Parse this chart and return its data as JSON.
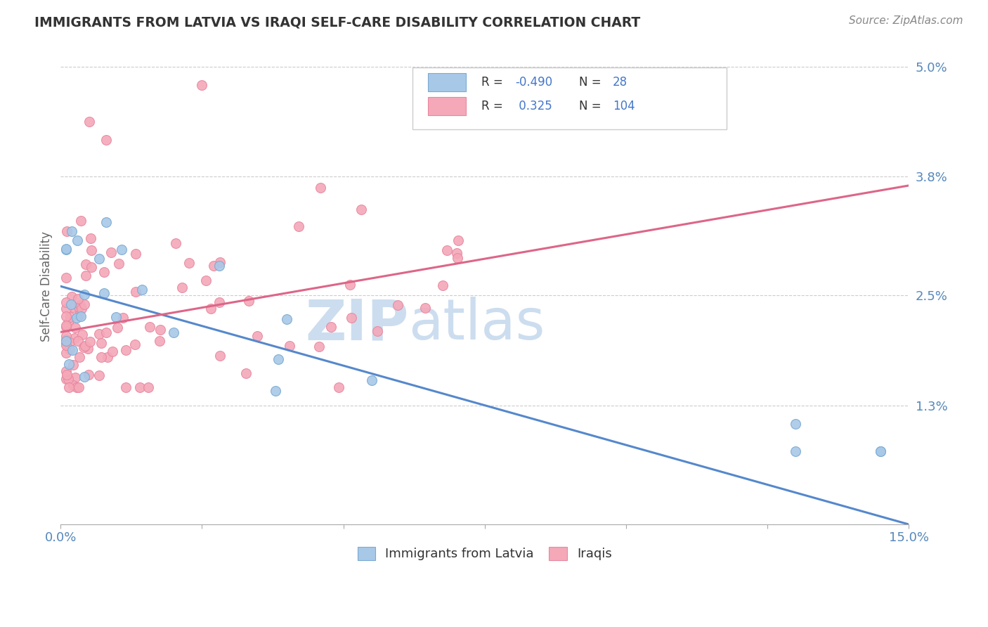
{
  "title": "IMMIGRANTS FROM LATVIA VS IRAQI SELF-CARE DISABILITY CORRELATION CHART",
  "source": "Source: ZipAtlas.com",
  "ylabel": "Self-Care Disability",
  "xlim": [
    0.0,
    0.15
  ],
  "ylim": [
    0.0,
    0.052
  ],
  "yticks": [
    0.0,
    0.013,
    0.025,
    0.038,
    0.05
  ],
  "yticklabels": [
    "",
    "1.3%",
    "2.5%",
    "3.8%",
    "5.0%"
  ],
  "xtick_positions": [
    0.0,
    0.025,
    0.05,
    0.075,
    0.1,
    0.125,
    0.15
  ],
  "blue_R": -0.49,
  "blue_N": 28,
  "pink_R": 0.325,
  "pink_N": 104,
  "blue_color": "#a8c8e8",
  "pink_color": "#f4a8b8",
  "blue_edge_color": "#7aaad0",
  "pink_edge_color": "#e888a0",
  "blue_line_color": "#5588cc",
  "pink_line_color": "#dd6688",
  "text_blue_color": "#4477cc",
  "label_color": "#5588bb",
  "title_color": "#333333",
  "source_color": "#888888",
  "watermark_color": "#ccddef",
  "background_color": "#ffffff",
  "grid_color": "#cccccc",
  "legend_blue_label": "Immigrants from Latvia",
  "legend_pink_label": "Iraqis",
  "blue_line_x0": 0.0,
  "blue_line_y0": 0.026,
  "blue_line_x1": 0.15,
  "blue_line_y1": 0.0,
  "pink_line_x0": 0.0,
  "pink_line_y0": 0.021,
  "pink_line_x1": 0.15,
  "pink_line_y1": 0.037
}
